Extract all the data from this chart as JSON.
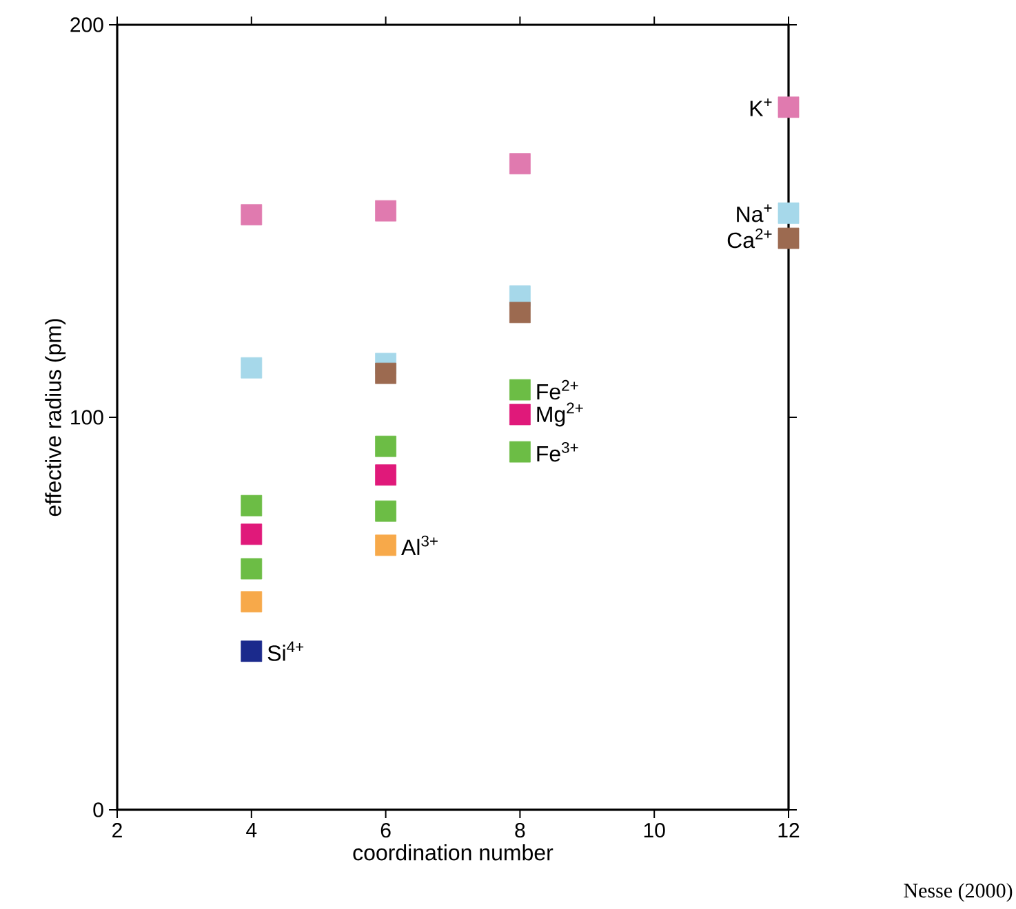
{
  "chart_data": {
    "type": "scatter",
    "xlabel": "coordination number",
    "ylabel": "effective radius (pm)",
    "xlim": [
      2,
      12
    ],
    "ylim": [
      0,
      200
    ],
    "xticks": [
      2,
      4,
      6,
      8,
      10,
      12
    ],
    "yticks": [
      0,
      100,
      200
    ],
    "marker": "square",
    "legend": false,
    "grid": false,
    "series": [
      {
        "name": "K$^{+}$",
        "color": "#e07aaf",
        "x": [
          4,
          6,
          8,
          12
        ],
        "values": [
          151.6,
          152.6,
          164.6,
          179
        ]
      },
      {
        "name": "Na$^{+}$",
        "color": "#a6d8ea",
        "x": [
          4,
          6,
          8,
          12
        ],
        "values": [
          112.6,
          113.7,
          130.9,
          152
        ]
      },
      {
        "name": "Ca$^{2+}$",
        "color": "#9c6a50",
        "x": [
          6,
          8,
          12
        ],
        "values": [
          111.2,
          126.7,
          145.6
        ]
      },
      {
        "name": "Fe$^{2+}$",
        "color": "#6cbd45",
        "x": [
          4,
          6,
          8
        ],
        "values": [
          77.5,
          92.6,
          107
        ]
      },
      {
        "name": "Mg$^{2+}$",
        "color": "#e0197a",
        "x": [
          4,
          6,
          8
        ],
        "values": [
          70.2,
          85.3,
          100.7
        ]
      },
      {
        "name": "Fe$^{3+}$",
        "color": "#6cbd45",
        "x": [
          4,
          6,
          8
        ],
        "values": [
          61.4,
          76.1,
          91.2
        ]
      },
      {
        "name": "Al$^{3+}$",
        "color": "#f7a94a",
        "x": [
          4,
          6
        ],
        "values": [
          53,
          67.4
        ]
      },
      {
        "name": "Si$^{4+}$",
        "color": "#1b2a8c",
        "x": [
          4
        ],
        "values": [
          40.4
        ]
      }
    ],
    "annotations": [
      "Nesse (2000)"
    ]
  }
}
